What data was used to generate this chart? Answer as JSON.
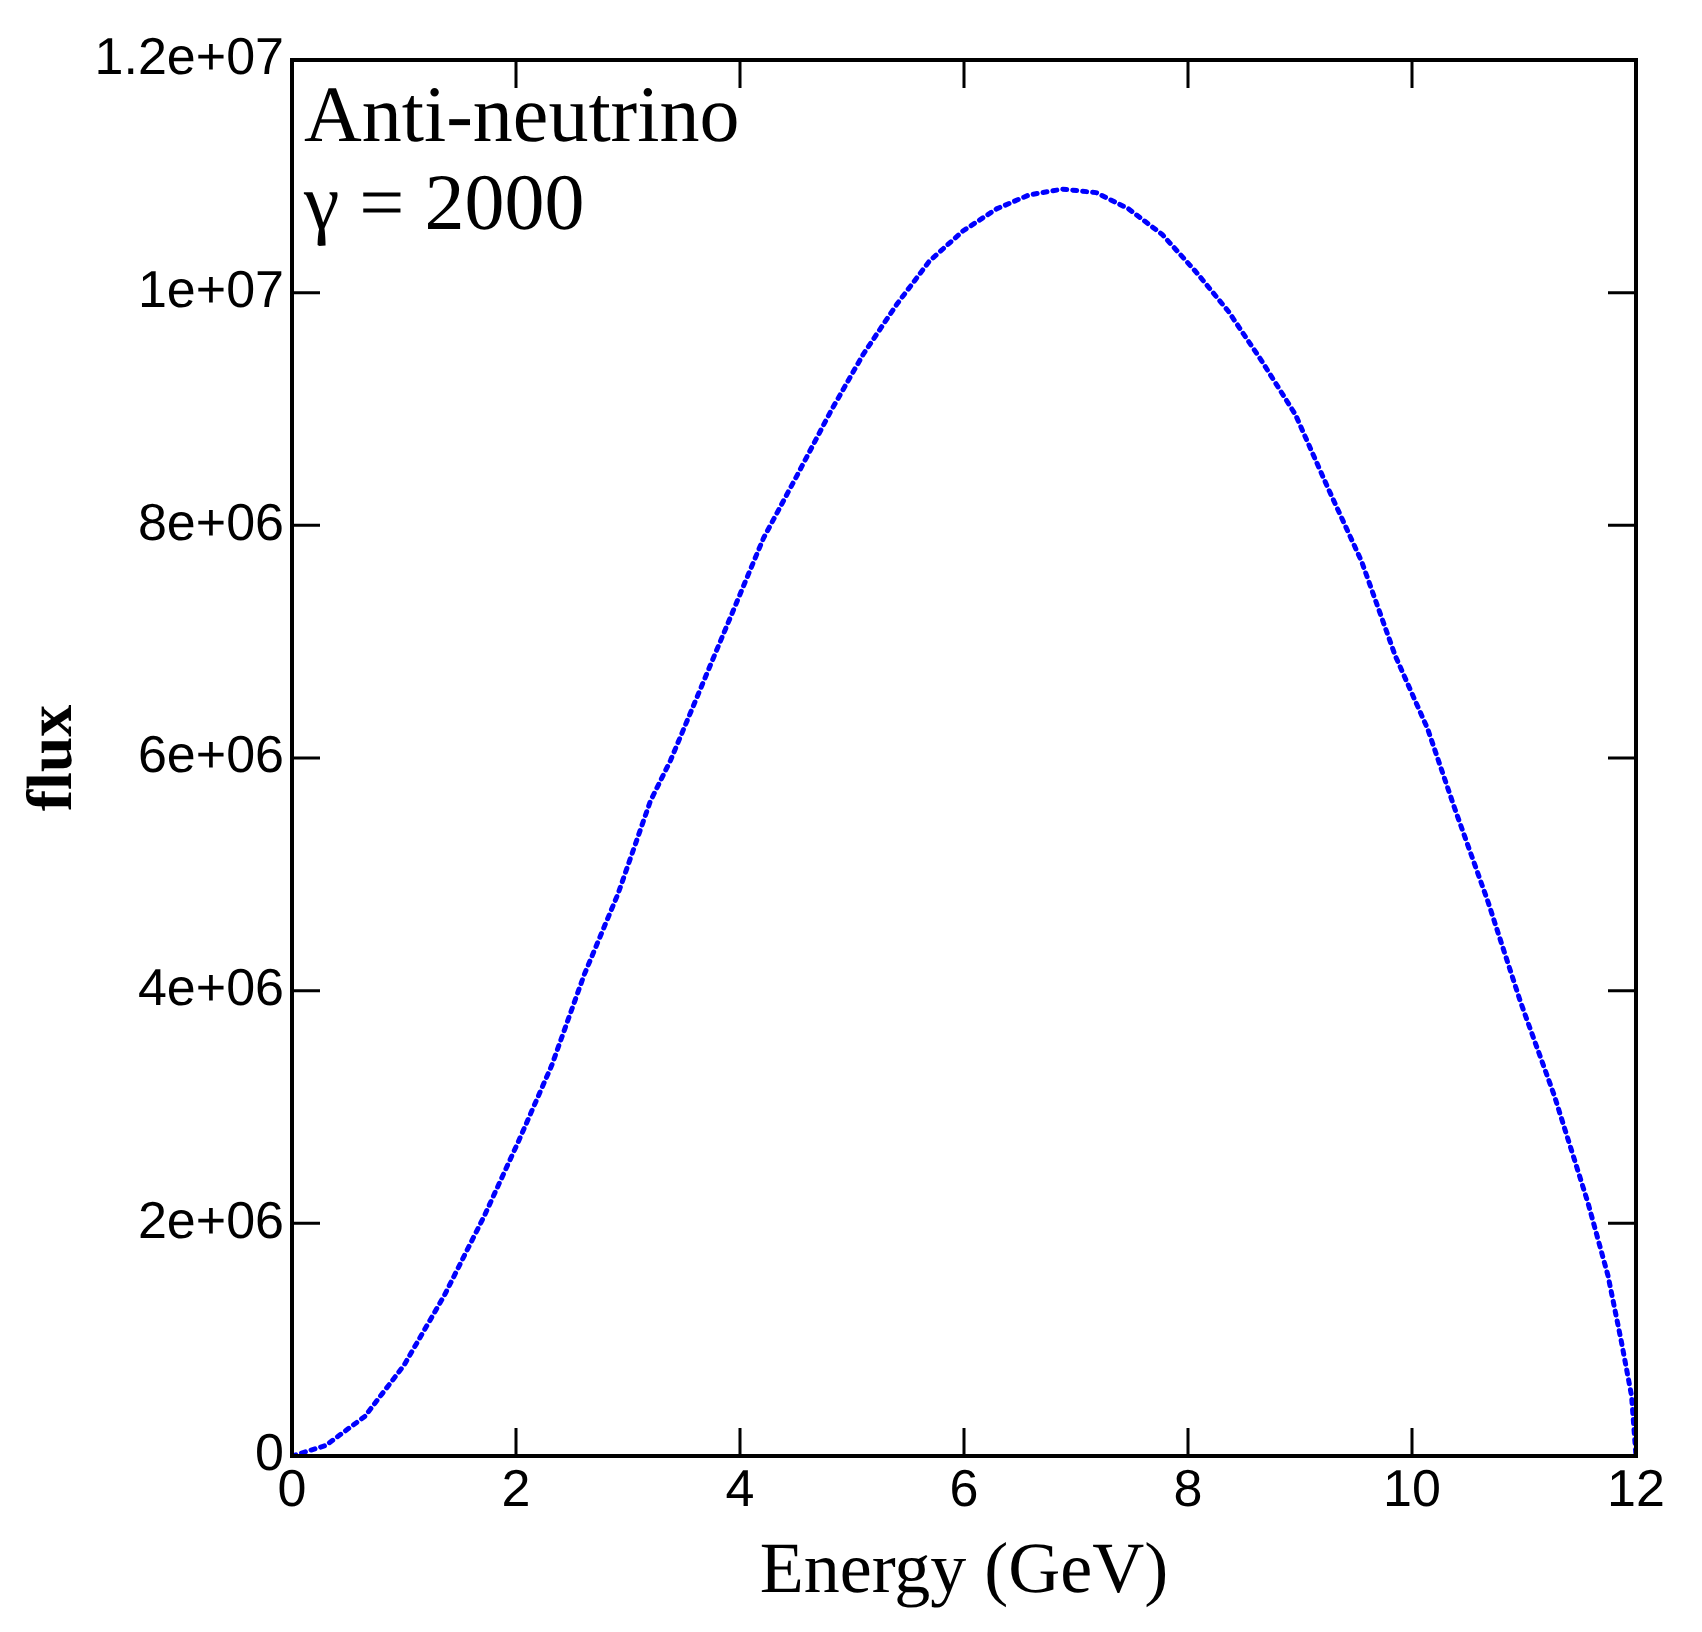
{
  "chart_data": {
    "type": "line",
    "xlabel": "Energy (GeV)",
    "ylabel": "flux",
    "annotations": [
      "Anti-neutrino",
      "γ = 2000"
    ],
    "x": [
      0,
      0.3,
      0.65,
      1.0,
      1.36,
      1.72,
      2.02,
      2.32,
      2.61,
      2.91,
      3.2,
      3.38,
      4.21,
      4.51,
      4.81,
      5.1,
      5.4,
      5.69,
      5.99,
      6.29,
      6.58,
      6.88,
      7.18,
      7.47,
      7.77,
      8.07,
      8.36,
      8.66,
      8.96,
      9.25,
      9.55,
      9.85,
      10.14,
      10.38,
      10.68,
      10.97,
      11.27,
      11.57,
      11.75,
      11.87,
      11.96,
      12
    ],
    "series": [
      {
        "color": "#0000ff",
        "values": [
          0,
          90000,
          340000,
          780000,
          1380000,
          2070000,
          2700000,
          3360000,
          4140000,
          4830000,
          5630000,
          5980000,
          7890000,
          8430000,
          8980000,
          9470000,
          9900000,
          10270000,
          10530000,
          10720000,
          10840000,
          10890000,
          10860000,
          10720000,
          10500000,
          10180000,
          9840000,
          9410000,
          8950000,
          8320000,
          7690000,
          6880000,
          6250000,
          5570000,
          4760000,
          3900000,
          3100000,
          2180000,
          1550000,
          980000,
          520000,
          0
        ]
      }
    ],
    "xlim": [
      0,
      12
    ],
    "xticks": [
      0,
      2,
      4,
      6,
      8,
      10,
      12
    ],
    "ylim": [
      0,
      12000000
    ],
    "yticks": [
      {
        "value": 0,
        "label": "0"
      },
      {
        "value": 2000000,
        "label": "2e+06"
      },
      {
        "value": 4000000,
        "label": "4e+06"
      },
      {
        "value": 6000000,
        "label": "6e+06"
      },
      {
        "value": 8000000,
        "label": "8e+06"
      },
      {
        "value": 10000000,
        "label": "1e+07"
      },
      {
        "value": 12000000,
        "label": "1.2e+07"
      }
    ],
    "marker": "none",
    "line_style": "dotted"
  }
}
